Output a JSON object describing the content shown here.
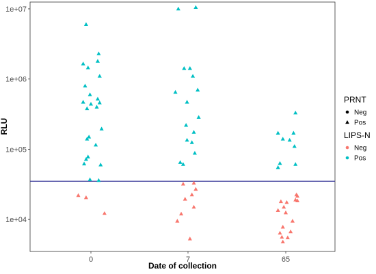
{
  "chart_data": {
    "type": "scatter",
    "title": "",
    "xlabel": "Date of collection",
    "ylabel": "RLU",
    "categories": [
      "0",
      "7",
      "65"
    ],
    "y_scale": "log10",
    "ylim": [
      3500,
      12500000
    ],
    "y_ticks": [
      {
        "value": 10000,
        "label": "1e+04"
      },
      {
        "value": 100000,
        "label": "1e+05"
      },
      {
        "value": 1000000,
        "label": "1e+06"
      },
      {
        "value": 10000000,
        "label": "1e+07"
      }
    ],
    "grid": false,
    "threshold": {
      "value": 35000,
      "color": "#3a3a9a"
    },
    "legend_position": "right",
    "legends": [
      {
        "title": "PRNT",
        "entries": [
          {
            "label": "Neg",
            "shape": "circle",
            "color": "#000000"
          },
          {
            "label": "Pos",
            "shape": "triangle",
            "color": "#000000"
          }
        ]
      },
      {
        "title": "LIPS-N",
        "entries": [
          {
            "label": "Neg",
            "shape": "circle",
            "color": "#f8766d"
          },
          {
            "label": "Pos",
            "shape": "circle",
            "color": "#00bfc4"
          }
        ]
      }
    ],
    "colors": {
      "Neg": "#f8766d",
      "Pos": "#00bfc4"
    },
    "series": [
      {
        "lips": "Pos",
        "prnt": "Pos",
        "points": [
          {
            "x": "0",
            "j": -0.05,
            "y": 6000000
          },
          {
            "x": "0",
            "j": 0.08,
            "y": 2300000
          },
          {
            "x": "0",
            "j": 0.07,
            "y": 1800000
          },
          {
            "x": "0",
            "j": -0.08,
            "y": 1650000
          },
          {
            "x": "0",
            "j": -0.03,
            "y": 1450000
          },
          {
            "x": "0",
            "j": 0.09,
            "y": 1100000
          },
          {
            "x": "0",
            "j": -0.06,
            "y": 800000
          },
          {
            "x": "0",
            "j": -0.01,
            "y": 600000
          },
          {
            "x": "0",
            "j": 0.07,
            "y": 520000
          },
          {
            "x": "0",
            "j": -0.08,
            "y": 470000
          },
          {
            "x": "0",
            "j": 0.0,
            "y": 440000
          },
          {
            "x": "0",
            "j": 0.09,
            "y": 460000
          },
          {
            "x": "0",
            "j": -0.04,
            "y": 380000
          },
          {
            "x": "0",
            "j": 0.06,
            "y": 400000
          },
          {
            "x": "0",
            "j": 0.11,
            "y": 195000
          },
          {
            "x": "0",
            "j": -0.02,
            "y": 150000
          },
          {
            "x": "0",
            "j": -0.04,
            "y": 140000
          },
          {
            "x": "0",
            "j": 0.05,
            "y": 115000
          },
          {
            "x": "0",
            "j": -0.03,
            "y": 78000
          },
          {
            "x": "0",
            "j": -0.05,
            "y": 72000
          },
          {
            "x": "0",
            "j": -0.07,
            "y": 62000
          },
          {
            "x": "0",
            "j": 0.1,
            "y": 60000
          },
          {
            "x": "0",
            "j": -0.01,
            "y": 37000
          },
          {
            "x": "0",
            "j": 0.08,
            "y": 36000
          },
          {
            "x": "7",
            "j": -0.1,
            "y": 10000000
          },
          {
            "x": "7",
            "j": 0.08,
            "y": 10500000
          },
          {
            "x": "7",
            "j": -0.04,
            "y": 1420000
          },
          {
            "x": "7",
            "j": 0.02,
            "y": 1420000
          },
          {
            "x": "7",
            "j": 0.05,
            "y": 1100000
          },
          {
            "x": "7",
            "j": 0.1,
            "y": 700000
          },
          {
            "x": "7",
            "j": -0.13,
            "y": 650000
          },
          {
            "x": "7",
            "j": -0.01,
            "y": 470000
          },
          {
            "x": "7",
            "j": 0.11,
            "y": 285000
          },
          {
            "x": "7",
            "j": -0.02,
            "y": 220000
          },
          {
            "x": "7",
            "j": 0.06,
            "y": 175000
          },
          {
            "x": "7",
            "j": -0.01,
            "y": 135000
          },
          {
            "x": "7",
            "j": 0.04,
            "y": 125000
          },
          {
            "x": "7",
            "j": 0.07,
            "y": 88000
          },
          {
            "x": "7",
            "j": -0.08,
            "y": 65000
          },
          {
            "x": "7",
            "j": -0.05,
            "y": 61000
          },
          {
            "x": "65",
            "j": 0.1,
            "y": 330000
          },
          {
            "x": "65",
            "j": -0.08,
            "y": 170000
          },
          {
            "x": "65",
            "j": 0.08,
            "y": 170000
          },
          {
            "x": "65",
            "j": -0.03,
            "y": 140000
          },
          {
            "x": "65",
            "j": 0.04,
            "y": 135000
          },
          {
            "x": "65",
            "j": 0.09,
            "y": 110000
          },
          {
            "x": "65",
            "j": 0.1,
            "y": 61000
          },
          {
            "x": "65",
            "j": -0.06,
            "y": 63000
          },
          {
            "x": "65",
            "j": -0.08,
            "y": 55000
          }
        ]
      },
      {
        "lips": "Neg",
        "prnt": "Pos",
        "points": [
          {
            "x": "0",
            "j": -0.13,
            "y": 22000
          },
          {
            "x": "0",
            "j": -0.05,
            "y": 20500
          },
          {
            "x": "0",
            "j": 0.14,
            "y": 12200
          },
          {
            "x": "7",
            "j": -0.05,
            "y": 32000
          },
          {
            "x": "7",
            "j": 0.06,
            "y": 33000
          },
          {
            "x": "7",
            "j": 0.08,
            "y": 27000
          },
          {
            "x": "7",
            "j": 0.04,
            "y": 22500
          },
          {
            "x": "7",
            "j": -0.03,
            "y": 19500
          },
          {
            "x": "7",
            "j": 0.06,
            "y": 15000
          },
          {
            "x": "7",
            "j": -0.07,
            "y": 12000
          },
          {
            "x": "7",
            "j": -0.11,
            "y": 9500
          },
          {
            "x": "7",
            "j": 0.02,
            "y": 5300
          },
          {
            "x": "65",
            "j": 0.11,
            "y": 22500
          },
          {
            "x": "65",
            "j": 0.12,
            "y": 21500
          },
          {
            "x": "65",
            "j": 0.1,
            "y": 19000
          },
          {
            "x": "65",
            "j": -0.05,
            "y": 18000
          },
          {
            "x": "65",
            "j": 0.01,
            "y": 17500
          },
          {
            "x": "65",
            "j": 0.12,
            "y": 18500
          },
          {
            "x": "65",
            "j": -0.02,
            "y": 15000
          },
          {
            "x": "65",
            "j": -0.08,
            "y": 13500
          },
          {
            "x": "65",
            "j": 0.0,
            "y": 12500
          },
          {
            "x": "65",
            "j": 0.07,
            "y": 9500
          },
          {
            "x": "65",
            "j": -0.03,
            "y": 7800
          },
          {
            "x": "65",
            "j": 0.05,
            "y": 6700
          },
          {
            "x": "65",
            "j": -0.06,
            "y": 6400
          },
          {
            "x": "65",
            "j": -0.04,
            "y": 5600
          },
          {
            "x": "65",
            "j": 0.02,
            "y": 5500
          },
          {
            "x": "65",
            "j": -0.03,
            "y": 4800
          }
        ]
      }
    ]
  }
}
